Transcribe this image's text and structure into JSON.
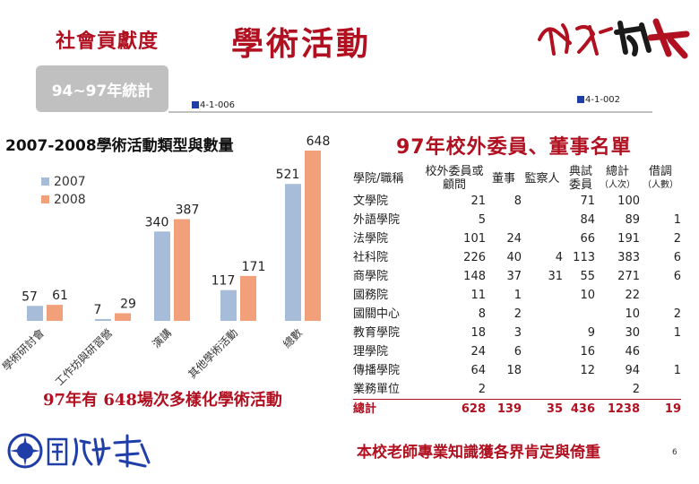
{
  "header": {
    "subtitle": "社會貢獻度",
    "title": "學術活動",
    "logo_text": "認識政大"
  },
  "tab": {
    "label": "94~97年統計"
  },
  "table_ids": {
    "left": "4-1-006",
    "right": "4-1-002"
  },
  "chart_data": {
    "type": "bar",
    "title": "2007-2008學術活動類型與數量",
    "categories": [
      "學術研討會",
      "工作坊與研習營",
      "演講",
      "其他學術活動",
      "總數"
    ],
    "series": [
      {
        "name": "2007",
        "values": [
          57,
          7,
          340,
          117,
          521
        ],
        "color": "#a7bcd8"
      },
      {
        "name": "2008",
        "values": [
          61,
          29,
          387,
          171,
          648
        ],
        "color": "#f2a07a"
      }
    ],
    "legend": "top-left",
    "grid": false
  },
  "chart_caption": "97年有 648場次多樣化學術活動",
  "right_title": "97年校外委員、董事名單",
  "table": {
    "headers": {
      "dept": "學院/職稱",
      "external": "校外委員或顧問",
      "director": "董事",
      "supervisor": "監察人",
      "exam": "典試委員",
      "total": "總計",
      "total_unit": "（人次）",
      "invited": "借調",
      "invited_unit": "（人數）"
    },
    "rows": [
      {
        "dept": "文學院",
        "external": "21",
        "director": "8",
        "supervisor": "",
        "exam": "71",
        "total": "100",
        "invited": ""
      },
      {
        "dept": "外語學院",
        "external": "5",
        "director": "",
        "supervisor": "",
        "exam": "84",
        "total": "89",
        "invited": "1"
      },
      {
        "dept": "法學院",
        "external": "101",
        "director": "24",
        "supervisor": "",
        "exam": "66",
        "total": "191",
        "invited": "2"
      },
      {
        "dept": "社科院",
        "external": "226",
        "director": "40",
        "supervisor": "4",
        "exam": "113",
        "total": "383",
        "invited": "6"
      },
      {
        "dept": "商學院",
        "external": "148",
        "director": "37",
        "supervisor": "31",
        "exam": "55",
        "total": "271",
        "invited": "6"
      },
      {
        "dept": "國務院",
        "external": "11",
        "director": "1",
        "supervisor": "",
        "exam": "10",
        "total": "22",
        "invited": ""
      },
      {
        "dept": "國關中心",
        "external": "8",
        "director": "2",
        "supervisor": "",
        "exam": "",
        "total": "10",
        "invited": "2"
      },
      {
        "dept": "教育學院",
        "external": "18",
        "director": "3",
        "supervisor": "",
        "exam": "9",
        "total": "30",
        "invited": "1"
      },
      {
        "dept": "理學院",
        "external": "24",
        "director": "6",
        "supervisor": "",
        "exam": "16",
        "total": "46",
        "invited": ""
      },
      {
        "dept": "傳播學院",
        "external": "64",
        "director": "18",
        "supervisor": "",
        "exam": "12",
        "total": "94",
        "invited": "1"
      },
      {
        "dept": "業務單位",
        "external": "2",
        "director": "",
        "supervisor": "",
        "exam": "",
        "total": "2",
        "invited": ""
      }
    ],
    "total_row": {
      "dept": "總計",
      "external": "628",
      "director": "139",
      "supervisor": "35",
      "exam": "436",
      "total": "1238",
      "invited": "19"
    }
  },
  "footer": {
    "caption": "本校老師專業知識獲各界肯定與倚重",
    "page_number": "6",
    "university_logo_text": "國立政治大學"
  }
}
